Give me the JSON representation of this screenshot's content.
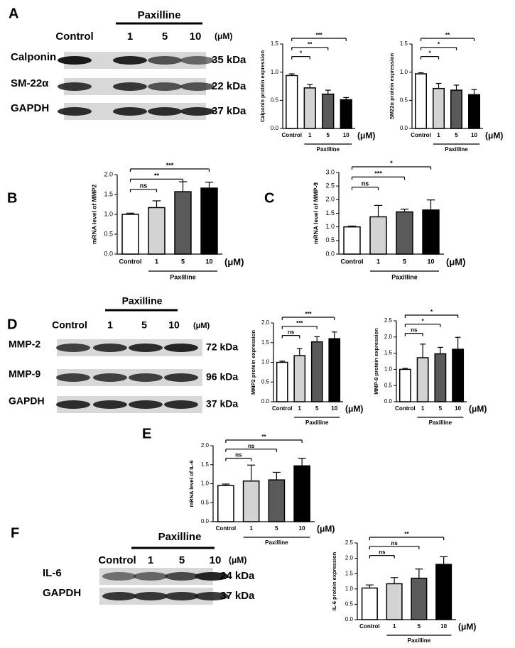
{
  "panel_labels": [
    "A",
    "B",
    "C",
    "D",
    "E",
    "F"
  ],
  "blots": [
    {
      "group": "Paxilline",
      "lanes": [
        "Control",
        "1",
        "5",
        "10"
      ],
      "unit": "(μM)",
      "rows": [
        {
          "label": "Calponin",
          "size": "35 kDa"
        },
        {
          "label": "SM-22α",
          "size": "22 kDa"
        },
        {
          "label": "GAPDH",
          "size": "37 kDa"
        }
      ]
    },
    {
      "group": "Paxilline",
      "lanes": [
        "Control",
        "1",
        "5",
        "10"
      ],
      "unit": "(μM)",
      "rows": [
        {
          "label": "MMP-2",
          "size": "72 kDa"
        },
        {
          "label": "MMP-9",
          "size": "96 kDa"
        },
        {
          "label": "GAPDH",
          "size": "37 kDa"
        }
      ]
    },
    {
      "group": "Paxilline",
      "lanes": [
        "Control",
        "1",
        "5",
        "10"
      ],
      "unit": "(μM)",
      "rows": [
        {
          "label": "IL-6",
          "size": "24 kDa"
        },
        {
          "label": "GAPDH",
          "size": "37 kDa"
        }
      ]
    }
  ],
  "chart_data": [
    {
      "type": "bar",
      "ylabel": "Calponin protein expression",
      "group_label": "Paxilline",
      "unit": "(μM)",
      "categories": [
        "Control",
        "1",
        "5",
        "10"
      ],
      "values": [
        0.94,
        0.72,
        0.61,
        0.51
      ],
      "errors": [
        0.03,
        0.06,
        0.07,
        0.04
      ],
      "colors": [
        "#ffffff",
        "#d3d3d3",
        "#5a5a5a",
        "#000000"
      ],
      "ylim": [
        0,
        1.5
      ],
      "yticks": [
        {
          "value": 0,
          "label": "0.0"
        },
        0.5,
        {
          "value": 1,
          "label": "1.0"
        },
        1.5
      ],
      "significance": [
        "*",
        "**",
        "***"
      ]
    },
    {
      "type": "bar",
      "ylabel": "SM22α protein expression",
      "group_label": "Paxilline",
      "unit": "(μM)",
      "categories": [
        "Control",
        "1",
        "5",
        "10"
      ],
      "values": [
        0.97,
        0.71,
        0.68,
        0.6
      ],
      "errors": [
        0.02,
        0.09,
        0.09,
        0.09
      ],
      "colors": [
        "#ffffff",
        "#d3d3d3",
        "#5a5a5a",
        "#000000"
      ],
      "ylim": [
        0,
        1.5
      ],
      "yticks": [
        {
          "value": 0,
          "label": "0.0"
        },
        0.5,
        {
          "value": 1,
          "label": "1.0"
        },
        1.5
      ],
      "significance": [
        "*",
        "*",
        "**"
      ]
    },
    {
      "type": "bar",
      "ylabel": "mRNA level of MMP2",
      "group_label": "Paxilline",
      "unit": "(μM)",
      "categories": [
        "Control",
        "1",
        "5",
        "10"
      ],
      "values": [
        1.0,
        1.17,
        1.57,
        1.66
      ],
      "errors": [
        0.03,
        0.17,
        0.25,
        0.15
      ],
      "colors": [
        "#ffffff",
        "#d3d3d3",
        "#5a5a5a",
        "#000000"
      ],
      "ylim": [
        0,
        2
      ],
      "yticks": [
        {
          "value": 0,
          "label": "0.0"
        },
        0.5,
        {
          "value": 1,
          "label": "1.0"
        },
        1.5,
        {
          "value": 2,
          "label": "2.0"
        }
      ],
      "significance": [
        "ns",
        "**",
        "***"
      ]
    },
    {
      "type": "bar",
      "ylabel": "mRNA level of MMP-9",
      "group_label": "Paxilline",
      "unit": "(μM)",
      "categories": [
        "Control",
        "1",
        "5",
        "10"
      ],
      "values": [
        1.0,
        1.37,
        1.55,
        1.62
      ],
      "errors": [
        0.03,
        0.42,
        0.1,
        0.37
      ],
      "colors": [
        "#ffffff",
        "#d3d3d3",
        "#5a5a5a",
        "#000000"
      ],
      "ylim": [
        0,
        3
      ],
      "yticks": [
        {
          "value": 0,
          "label": "0.0"
        },
        0.5,
        {
          "value": 1,
          "label": "1.0"
        },
        1.5,
        {
          "value": 2,
          "label": "2.0"
        },
        2.5,
        {
          "value": 3,
          "label": "3.0"
        }
      ],
      "significance": [
        "ns",
        "***",
        "*"
      ]
    },
    {
      "type": "bar",
      "ylabel": "MMP2 protein expression",
      "group_label": "Paxilline",
      "unit": "(μM)",
      "categories": [
        "Control",
        "1",
        "5",
        "10"
      ],
      "values": [
        1.0,
        1.17,
        1.52,
        1.6
      ],
      "errors": [
        0.03,
        0.18,
        0.13,
        0.17
      ],
      "colors": [
        "#ffffff",
        "#d3d3d3",
        "#5a5a5a",
        "#000000"
      ],
      "ylim": [
        0,
        2
      ],
      "yticks": [
        {
          "value": 0,
          "label": "0.0"
        },
        0.5,
        {
          "value": 1,
          "label": "1.0"
        },
        1.5,
        {
          "value": 2,
          "label": "2.0"
        }
      ],
      "significance": [
        "ns",
        "***",
        "***"
      ]
    },
    {
      "type": "bar",
      "ylabel": "MMP-9 protein expression",
      "group_label": "Paxilline",
      "unit": "(μM)",
      "categories": [
        "Control",
        "1",
        "5",
        "10"
      ],
      "values": [
        1.0,
        1.36,
        1.48,
        1.62
      ],
      "errors": [
        0.03,
        0.42,
        0.2,
        0.37
      ],
      "colors": [
        "#ffffff",
        "#d3d3d3",
        "#5a5a5a",
        "#000000"
      ],
      "ylim": [
        0,
        2.5
      ],
      "yticks": [
        {
          "value": 0,
          "label": "0.0"
        },
        0.5,
        {
          "value": 1,
          "label": "1.0"
        },
        1.5,
        {
          "value": 2,
          "label": "2.0"
        },
        2.5
      ],
      "significance": [
        "ns",
        "*",
        "*"
      ]
    },
    {
      "type": "bar",
      "ylabel": "mRNA level of IL-6",
      "group_label": "Paxilline",
      "unit": "(μM)",
      "categories": [
        "Control",
        "1",
        "5",
        "10"
      ],
      "values": [
        0.95,
        1.07,
        1.1,
        1.47
      ],
      "errors": [
        0.04,
        0.42,
        0.2,
        0.2
      ],
      "colors": [
        "#ffffff",
        "#d3d3d3",
        "#5a5a5a",
        "#000000"
      ],
      "ylim": [
        0,
        2
      ],
      "yticks": [
        {
          "value": 0,
          "label": "0.0"
        },
        0.5,
        {
          "value": 1,
          "label": "1.0"
        },
        1.5,
        {
          "value": 2,
          "label": "2.0"
        }
      ],
      "significance": [
        "ns",
        "ns",
        "**"
      ]
    },
    {
      "type": "bar",
      "ylabel": "IL-6 protein expression",
      "group_label": "Paxilline",
      "unit": "(μM)",
      "categories": [
        "Control",
        "1",
        "5",
        "10"
      ],
      "values": [
        1.03,
        1.17,
        1.35,
        1.8
      ],
      "errors": [
        0.1,
        0.2,
        0.3,
        0.25
      ],
      "colors": [
        "#ffffff",
        "#d3d3d3",
        "#5a5a5a",
        "#000000"
      ],
      "ylim": [
        0,
        2.5
      ],
      "yticks": [
        {
          "value": 0,
          "label": "0.0"
        },
        0.5,
        {
          "value": 1,
          "label": "1.0"
        },
        1.5,
        {
          "value": 2,
          "label": "2.0"
        },
        2.5
      ],
      "significance": [
        "ns",
        "ns",
        "**"
      ]
    }
  ]
}
